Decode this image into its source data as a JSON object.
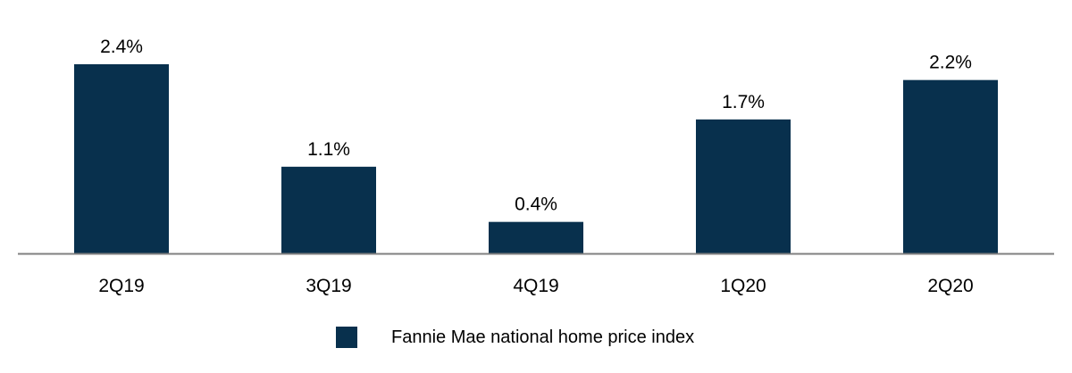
{
  "chart_data": {
    "type": "bar",
    "categories": [
      "2Q19",
      "3Q19",
      "4Q19",
      "1Q20",
      "2Q20"
    ],
    "series": [
      {
        "name": "Fannie Mae national home price index",
        "values": [
          2.4,
          1.1,
          0.4,
          1.7,
          2.2
        ],
        "labels": [
          "2.4%",
          "1.1%",
          "0.4%",
          "1.7%",
          "2.2%"
        ],
        "color": "#08304d"
      }
    ],
    "title": "",
    "xlabel": "",
    "ylabel": "",
    "ylim": [
      0,
      2.4
    ],
    "grid": false,
    "legend_position": "bottom-center",
    "axis_color": "#808080"
  }
}
